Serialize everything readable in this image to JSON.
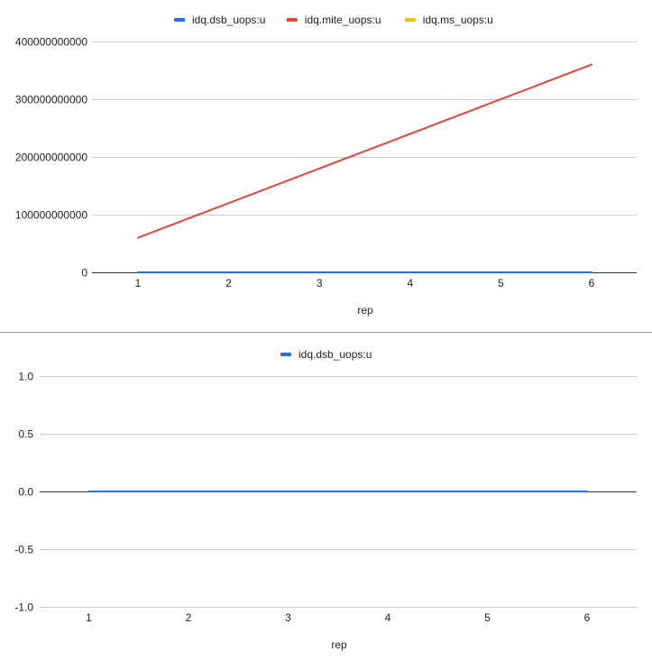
{
  "colors": {
    "dsb": "#1a73e8",
    "mite": "#ea4335",
    "ms": "#fbbc04",
    "grid": "#cccccc",
    "axis": "#333333",
    "text": "#222222",
    "divider": "#9e9e9e"
  },
  "chart_data": [
    {
      "type": "line",
      "x": [
        1,
        2,
        3,
        4,
        5,
        6
      ],
      "xlabel": "rep",
      "ylabel": "",
      "xticks": [
        "1",
        "2",
        "3",
        "4",
        "5",
        "6"
      ],
      "yticks": [
        "0",
        "100000000000",
        "200000000000",
        "300000000000",
        "400000000000"
      ],
      "ylim": [
        0,
        400000000000
      ],
      "grid": true,
      "legend_position": "top",
      "series": [
        {
          "name": "idq.dsb_uops:u",
          "color": "#1a73e8",
          "values": [
            0,
            0,
            0,
            0,
            0,
            0
          ]
        },
        {
          "name": "idq.mite_uops:u",
          "color": "#ea4335",
          "values": [
            60000000000,
            120000000000,
            180000000000,
            240000000000,
            300000000000,
            360000000000
          ]
        },
        {
          "name": "idq.ms_uops:u",
          "color": "#fbbc04",
          "values": [
            0,
            0,
            0,
            0,
            0,
            0
          ]
        }
      ]
    },
    {
      "type": "line",
      "x": [
        1,
        2,
        3,
        4,
        5,
        6
      ],
      "xlabel": "rep",
      "ylabel": "",
      "xticks": [
        "1",
        "2",
        "3",
        "4",
        "5",
        "6"
      ],
      "yticks": [
        "-1.0",
        "-0.5",
        "0.0",
        "0.5",
        "1.0"
      ],
      "ylim": [
        -1,
        1
      ],
      "grid": true,
      "legend_position": "top",
      "series": [
        {
          "name": "idq.dsb_uops:u",
          "color": "#1a73e8",
          "values": [
            0,
            0,
            0,
            0,
            0,
            0
          ]
        }
      ]
    }
  ]
}
